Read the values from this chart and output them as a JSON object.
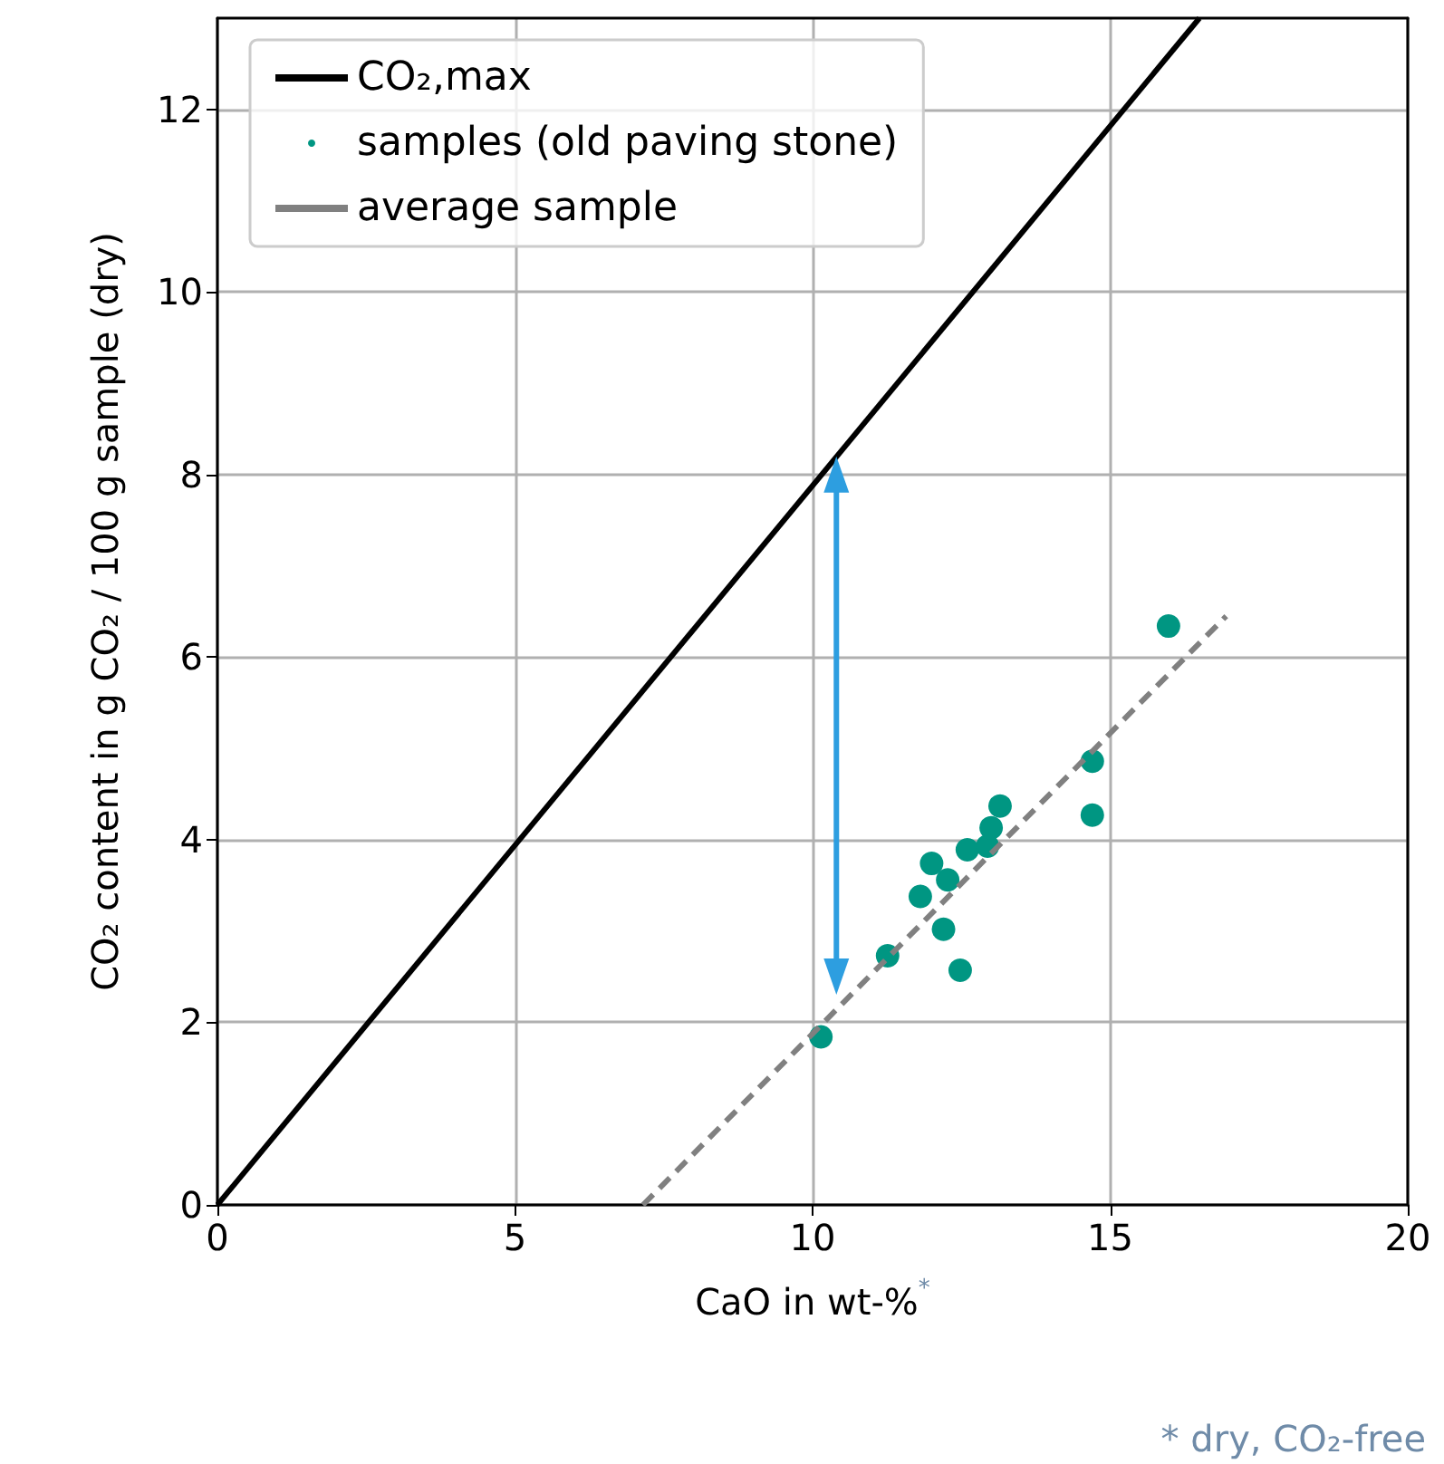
{
  "chart_data": {
    "type": "scatter",
    "xlabel": "CaO in wt-%$^{*}$",
    "ylabel": "CO₂ content in g CO₂ / 100 g sample (dry)",
    "annotations": [
      "* dry, CO₂-free"
    ],
    "series": [
      {
        "type": "line",
        "name": "CO₂,max",
        "color": "#000000",
        "x": [
          0,
          16.5
        ],
        "values": [
          0,
          13
        ],
        "line_style": "solid",
        "marker": "none"
      },
      {
        "name": "samples (old paving stone)",
        "color": "#009682",
        "marker": "circle",
        "x": [
          10.14,
          11.26,
          11.81,
          12.0,
          12.2,
          12.27,
          12.48,
          12.6,
          12.94,
          13.0,
          13.15,
          14.7,
          14.7,
          15.98
        ],
        "values": [
          1.84,
          2.73,
          3.38,
          3.74,
          3.02,
          3.56,
          2.57,
          3.89,
          3.93,
          4.13,
          4.37,
          4.86,
          4.27,
          6.34
        ]
      },
      {
        "type": "line",
        "name": "average sample",
        "color": "#808080",
        "x": [
          7.15,
          16.95
        ],
        "values": [
          0,
          6.45
        ],
        "line_style": "dashed",
        "marker": "none"
      },
      {
        "type": "line",
        "color": "#2d9ee0",
        "x": [
          10.4,
          10.4
        ],
        "values": [
          8,
          2.5
        ],
        "line_style": "solid",
        "marker": "triangle"
      }
    ],
    "xlim": [
      0,
      20
    ],
    "xticks": [
      0,
      5,
      10,
      15,
      20
    ],
    "ylim": [
      0,
      13
    ],
    "yticks": [
      0,
      2,
      4,
      6,
      8,
      10,
      12
    ],
    "grid": true,
    "legend": "top left"
  }
}
